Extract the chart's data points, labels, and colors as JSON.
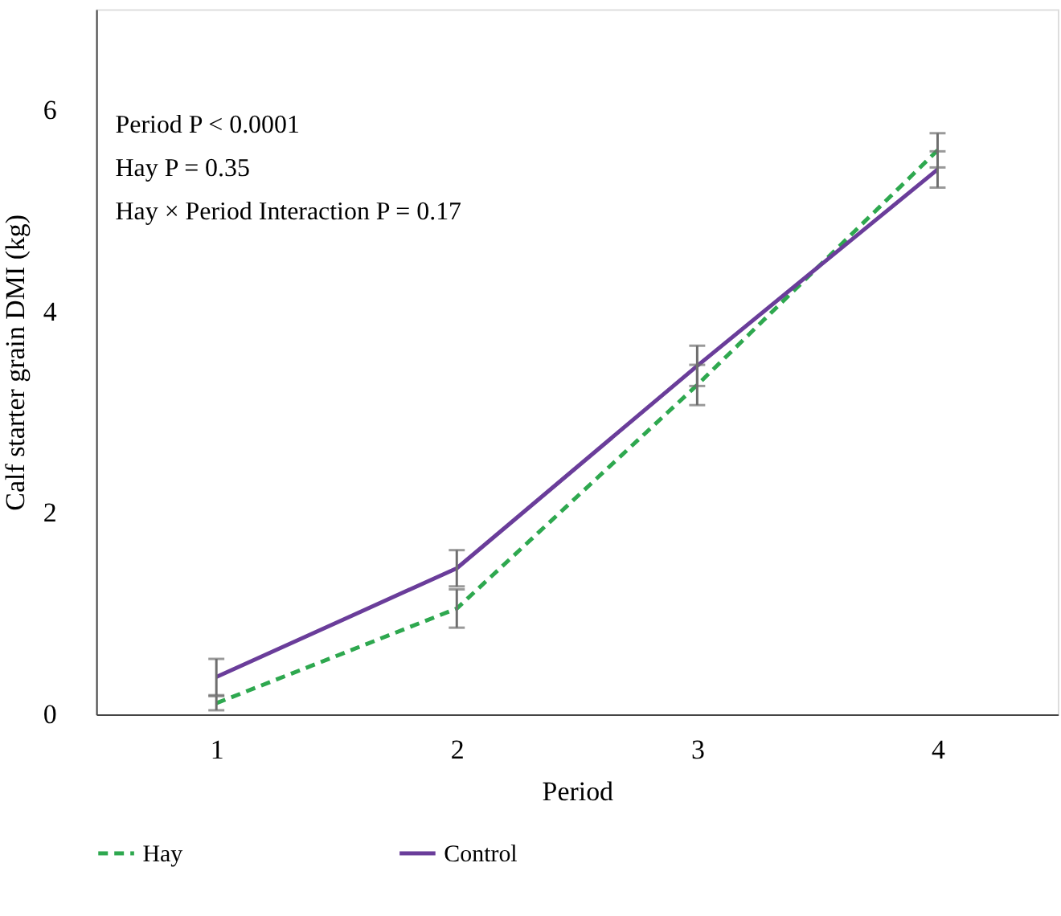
{
  "chart_data": {
    "type": "line",
    "xlabel": "Period",
    "ylabel": "Calf starter grain DMI (kg)",
    "x": [
      1,
      2,
      3,
      4
    ],
    "xlim": [
      0.5,
      4.5
    ],
    "xticks": [
      1,
      2,
      3,
      4
    ],
    "ylim": [
      0,
      7
    ],
    "yticks": [
      0,
      2,
      4,
      6
    ],
    "grid": false,
    "legend": "bottom",
    "marker": "none",
    "series": [
      {
        "name": "Hay",
        "color": "#2ea84f",
        "line_style": "dashed",
        "values": [
          0.11,
          1.05,
          3.27,
          5.6
        ],
        "errors": [
          0.07,
          0.19,
          0.2,
          0.17
        ]
      },
      {
        "name": "Control",
        "color": "#6a3d9a",
        "line_style": "solid",
        "values": [
          0.37,
          1.45,
          3.46,
          5.41
        ],
        "errors": [
          0.18,
          0.18,
          0.2,
          0.18
        ]
      }
    ],
    "annotations": [
      "Period P < 0.0001",
      "Hay P = 0.35",
      "Hay × Period Interaction P = 0.17"
    ]
  }
}
